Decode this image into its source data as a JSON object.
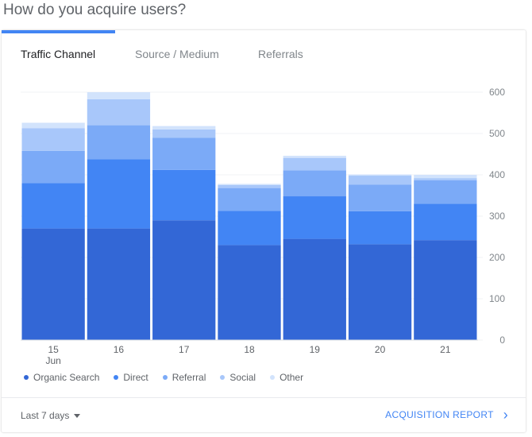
{
  "question": "How do you acquire users?",
  "tabs": [
    {
      "label": "Traffic Channel"
    },
    {
      "label": "Source / Medium"
    },
    {
      "label": "Referrals"
    }
  ],
  "footer": {
    "date_range": "Last 7 days",
    "report_link": "ACQUISITION REPORT"
  },
  "colors": {
    "accent": "#4285f4",
    "organic_search": "#3367d6",
    "direct": "#4285f4",
    "referral": "#7baaf7",
    "social": "#a8c7fa",
    "other": "#d2e3fc"
  },
  "chart_data": {
    "type": "bar",
    "stacked": true,
    "categories": [
      "15",
      "16",
      "17",
      "18",
      "19",
      "20",
      "21"
    ],
    "category_sublabels": [
      "Jun",
      "",
      "",
      "",
      "",
      "",
      ""
    ],
    "y_ticks": [
      0,
      100,
      200,
      300,
      400,
      500,
      600
    ],
    "ylim": [
      0,
      600
    ],
    "y_axis_position": "right",
    "legend_position": "bottom-left",
    "series": [
      {
        "name": "Organic Search",
        "color": "#3367d6",
        "values": [
          270,
          270,
          290,
          230,
          245,
          232,
          242
        ]
      },
      {
        "name": "Direct",
        "color": "#4285f4",
        "values": [
          110,
          168,
          122,
          83,
          103,
          80,
          88
        ]
      },
      {
        "name": "Referral",
        "color": "#7baaf7",
        "values": [
          78,
          82,
          78,
          55,
          63,
          64,
          57
        ]
      },
      {
        "name": "Social",
        "color": "#a8c7fa",
        "values": [
          55,
          63,
          20,
          7,
          30,
          22,
          5
        ]
      },
      {
        "name": "Other",
        "color": "#d2e3fc",
        "values": [
          13,
          17,
          8,
          3,
          5,
          3,
          8
        ]
      }
    ]
  }
}
